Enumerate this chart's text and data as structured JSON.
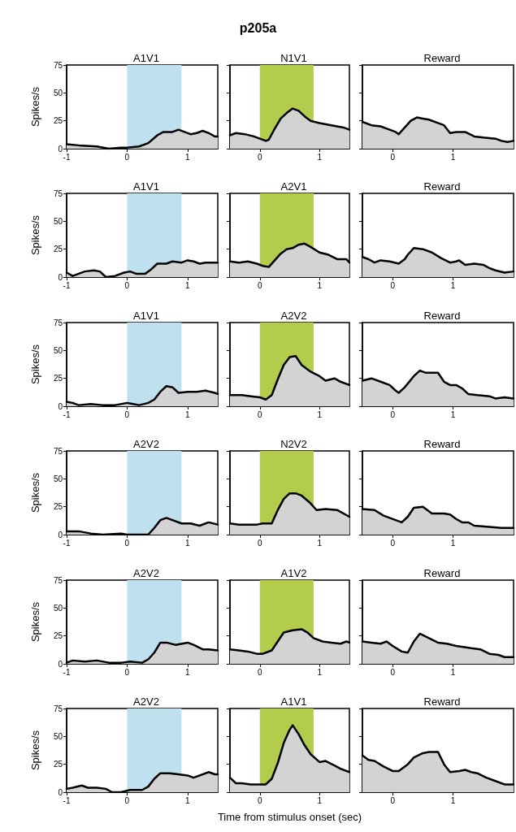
{
  "chart_data": [
    {
      "type": "area",
      "title": "A1V1",
      "ylabel": "Spikes/s",
      "annotations": [
        "p205a"
      ],
      "x": [
        -1,
        -0.8,
        -0.5,
        -0.3,
        -0.1,
        0,
        0.2,
        0.35,
        0.5,
        0.6,
        0.75,
        0.85,
        0.95,
        1.05,
        1.15,
        1.25,
        1.35,
        1.45,
        1.5
      ],
      "values": [
        4,
        3,
        2,
        0,
        1,
        1,
        2,
        5,
        12,
        15,
        15,
        17,
        15,
        13,
        14,
        16,
        14,
        11,
        11
      ],
      "color": "#d3d3d3",
      "xlim": [
        -1,
        1.5
      ],
      "xticks": [
        -1,
        0,
        1
      ],
      "ylim": [
        0,
        75
      ],
      "yticks": [
        0,
        25,
        50,
        75
      ],
      "bands": [
        {
          "axis": "x",
          "from": 0,
          "to": 0.9,
          "color": "#bfe0ee"
        }
      ]
    },
    {
      "type": "area",
      "title": "N1V1",
      "tick_labels": "x",
      "x": [
        -0.5,
        -0.4,
        -0.25,
        -0.1,
        0,
        0.1,
        0.15,
        0.25,
        0.35,
        0.45,
        0.55,
        0.65,
        0.75,
        0.85,
        1,
        1.2,
        1.4,
        1.5
      ],
      "values": [
        12,
        14,
        13,
        11,
        9,
        7,
        8,
        18,
        27,
        32,
        36,
        34,
        29,
        25,
        23,
        21,
        19,
        17
      ],
      "color": "#d3d3d3",
      "xlim": [
        -0.5,
        1.5
      ],
      "xticks": [
        0,
        1
      ],
      "ylim": [
        0,
        75
      ],
      "yticks": [
        0,
        25,
        50,
        75
      ],
      "bands": [
        {
          "axis": "x",
          "from": 0,
          "to": 0.9,
          "color": "#b4cc4c"
        }
      ]
    },
    {
      "type": "area",
      "title": "Reward",
      "tick_labels": "x",
      "x": [
        -0.5,
        -0.35,
        -0.2,
        -0.05,
        0.05,
        0.1,
        0.2,
        0.3,
        0.4,
        0.5,
        0.6,
        0.75,
        0.85,
        0.95,
        1.05,
        1.2,
        1.35,
        1.5,
        1.7,
        1.8,
        1.9,
        2
      ],
      "values": [
        24,
        21,
        20,
        17,
        15,
        13,
        19,
        25,
        28,
        27,
        26,
        23,
        21,
        14,
        15,
        15,
        11,
        10,
        9,
        7,
        6,
        7
      ],
      "color": "#d3d3d3",
      "xlim": [
        -0.5,
        2
      ],
      "xticks": [
        0,
        1
      ],
      "ylim": [
        0,
        75
      ],
      "yticks": [
        0,
        25,
        50,
        75
      ]
    },
    {
      "type": "area",
      "title": "A1V1",
      "ylabel": "Spikes/s",
      "x": [
        -1,
        -0.9,
        -0.8,
        -0.7,
        -0.55,
        -0.45,
        -0.35,
        -0.2,
        -0.05,
        0.05,
        0.15,
        0.3,
        0.4,
        0.5,
        0.65,
        0.75,
        0.9,
        1,
        1.1,
        1.2,
        1.3,
        1.5
      ],
      "values": [
        4,
        1,
        3,
        5,
        6,
        5,
        0,
        1,
        4,
        5,
        3,
        3,
        7,
        12,
        12,
        14,
        13,
        15,
        14,
        12,
        13,
        13
      ],
      "color": "#d3d3d3",
      "xlim": [
        -1,
        1.5
      ],
      "xticks": [
        -1,
        0,
        1
      ],
      "ylim": [
        0,
        75
      ],
      "yticks": [
        0,
        25,
        50,
        75
      ],
      "bands": [
        {
          "axis": "x",
          "from": 0,
          "to": 0.9,
          "color": "#bfe0ee"
        }
      ]
    },
    {
      "type": "area",
      "title": "A2V1",
      "tick_labels": "x",
      "x": [
        -0.5,
        -0.35,
        -0.2,
        -0.05,
        0.05,
        0.15,
        0.25,
        0.35,
        0.45,
        0.55,
        0.65,
        0.75,
        0.85,
        1,
        1.15,
        1.3,
        1.45,
        1.5
      ],
      "values": [
        14,
        13,
        14,
        12,
        10,
        9,
        15,
        21,
        25,
        26,
        29,
        30,
        27,
        22,
        20,
        16,
        16,
        13
      ],
      "color": "#d3d3d3",
      "xlim": [
        -0.5,
        1.5
      ],
      "xticks": [
        0,
        1
      ],
      "ylim": [
        0,
        75
      ],
      "yticks": [
        0,
        25,
        50,
        75
      ],
      "bands": [
        {
          "axis": "x",
          "from": 0,
          "to": 0.9,
          "color": "#b4cc4c"
        }
      ]
    },
    {
      "type": "area",
      "title": "Reward",
      "tick_labels": "x",
      "x": [
        -0.5,
        -0.4,
        -0.3,
        -0.2,
        -0.05,
        0.1,
        0.2,
        0.25,
        0.35,
        0.5,
        0.65,
        0.8,
        0.95,
        1.05,
        1.1,
        1.2,
        1.35,
        1.5,
        1.6,
        1.7,
        1.85,
        2
      ],
      "values": [
        18,
        16,
        13,
        15,
        14,
        12,
        16,
        20,
        26,
        25,
        22,
        17,
        13,
        14,
        15,
        11,
        12,
        11,
        8,
        6,
        4,
        5
      ],
      "color": "#d3d3d3",
      "xlim": [
        -0.5,
        2
      ],
      "xticks": [
        0,
        1
      ],
      "ylim": [
        0,
        75
      ],
      "yticks": [
        0,
        25,
        50,
        75
      ]
    },
    {
      "type": "area",
      "title": "A1V1",
      "ylabel": "Spikes/s",
      "x": [
        -1,
        -0.9,
        -0.8,
        -0.6,
        -0.4,
        -0.2,
        0,
        0.1,
        0.2,
        0.35,
        0.45,
        0.55,
        0.65,
        0.75,
        0.85,
        1,
        1.15,
        1.3,
        1.45,
        1.5
      ],
      "values": [
        4,
        3,
        1,
        2,
        1,
        1,
        3,
        2,
        1,
        3,
        6,
        13,
        18,
        17,
        12,
        13,
        13,
        14,
        12,
        11
      ],
      "color": "#d3d3d3",
      "xlim": [
        -1,
        1.5
      ],
      "xticks": [
        -1,
        0,
        1
      ],
      "ylim": [
        0,
        75
      ],
      "yticks": [
        0,
        25,
        50,
        75
      ],
      "bands": [
        {
          "axis": "x",
          "from": 0,
          "to": 0.9,
          "color": "#bfe0ee"
        }
      ]
    },
    {
      "type": "area",
      "title": "A2V2",
      "tick_labels": "x",
      "x": [
        -0.5,
        -0.3,
        -0.15,
        0,
        0.1,
        0.2,
        0.3,
        0.4,
        0.5,
        0.6,
        0.7,
        0.85,
        1,
        1.1,
        1.25,
        1.35,
        1.5
      ],
      "values": [
        10,
        10,
        9,
        8,
        6,
        10,
        24,
        37,
        44,
        45,
        37,
        31,
        27,
        23,
        25,
        22,
        19
      ],
      "color": "#d3d3d3",
      "xlim": [
        -0.5,
        1.5
      ],
      "xticks": [
        0,
        1
      ],
      "ylim": [
        0,
        75
      ],
      "yticks": [
        0,
        25,
        50,
        75
      ],
      "bands": [
        {
          "axis": "x",
          "from": 0,
          "to": 0.9,
          "color": "#b4cc4c"
        }
      ]
    },
    {
      "type": "area",
      "title": "Reward",
      "tick_labels": "x",
      "x": [
        -0.5,
        -0.35,
        -0.2,
        -0.05,
        0.05,
        0.1,
        0.2,
        0.35,
        0.45,
        0.55,
        0.75,
        0.85,
        0.95,
        1.05,
        1.15,
        1.25,
        1.4,
        1.6,
        1.7,
        1.85,
        2
      ],
      "values": [
        23,
        25,
        22,
        19,
        14,
        12,
        17,
        27,
        32,
        30,
        30,
        22,
        19,
        19,
        16,
        11,
        10,
        9,
        7,
        8,
        7
      ],
      "color": "#d3d3d3",
      "xlim": [
        -0.5,
        2
      ],
      "xticks": [
        0,
        1
      ],
      "ylim": [
        0,
        75
      ],
      "yticks": [
        0,
        25,
        50,
        75
      ]
    },
    {
      "type": "area",
      "title": "A2V2",
      "ylabel": "Spikes/s",
      "x": [
        -1,
        -0.8,
        -0.6,
        -0.4,
        -0.1,
        0,
        0.2,
        0.35,
        0.45,
        0.55,
        0.65,
        0.75,
        0.9,
        1.05,
        1.2,
        1.35,
        1.5
      ],
      "values": [
        3,
        3,
        1,
        0,
        1,
        0,
        0,
        0,
        6,
        13,
        15,
        13,
        10,
        10,
        8,
        11,
        9
      ],
      "color": "#d3d3d3",
      "xlim": [
        -1,
        1.5
      ],
      "xticks": [
        -1,
        0,
        1
      ],
      "ylim": [
        0,
        75
      ],
      "yticks": [
        0,
        25,
        50,
        75
      ],
      "bands": [
        {
          "axis": "x",
          "from": 0,
          "to": 0.9,
          "color": "#bfe0ee"
        }
      ]
    },
    {
      "type": "area",
      "title": "N2V2",
      "tick_labels": "x",
      "x": [
        -0.5,
        -0.35,
        -0.2,
        -0.05,
        0.05,
        0.15,
        0.2,
        0.3,
        0.4,
        0.5,
        0.6,
        0.7,
        0.85,
        0.95,
        1.1,
        1.3,
        1.5
      ],
      "values": [
        10,
        9,
        9,
        9,
        10,
        10,
        10,
        22,
        32,
        37,
        37,
        35,
        28,
        22,
        23,
        22,
        16
      ],
      "color": "#d3d3d3",
      "xlim": [
        -0.5,
        1.5
      ],
      "xticks": [
        0,
        1
      ],
      "ylim": [
        0,
        75
      ],
      "yticks": [
        0,
        25,
        50,
        75
      ],
      "bands": [
        {
          "axis": "x",
          "from": 0,
          "to": 0.9,
          "color": "#b4cc4c"
        }
      ]
    },
    {
      "type": "area",
      "title": "Reward",
      "tick_labels": "x",
      "x": [
        -0.5,
        -0.3,
        -0.15,
        0.05,
        0.15,
        0.25,
        0.35,
        0.5,
        0.65,
        0.85,
        0.95,
        1.05,
        1.15,
        1.25,
        1.35,
        1.6,
        1.8,
        2
      ],
      "values": [
        23,
        22,
        17,
        13,
        11,
        16,
        24,
        25,
        19,
        19,
        18,
        14,
        11,
        11,
        8,
        7,
        6,
        6
      ],
      "color": "#d3d3d3",
      "xlim": [
        -0.5,
        2
      ],
      "xticks": [
        0,
        1
      ],
      "ylim": [
        0,
        75
      ],
      "yticks": [
        0,
        25,
        50,
        75
      ]
    },
    {
      "type": "area",
      "title": "A2V2",
      "ylabel": "Spikes/s",
      "x": [
        -1,
        -0.9,
        -0.7,
        -0.5,
        -0.3,
        -0.1,
        0.05,
        0.25,
        0.35,
        0.45,
        0.55,
        0.65,
        0.8,
        1,
        1.1,
        1.25,
        1.35,
        1.5
      ],
      "values": [
        1,
        3,
        2,
        3,
        1,
        1,
        2,
        1,
        4,
        10,
        19,
        19,
        17,
        19,
        17,
        13,
        13,
        12
      ],
      "color": "#d3d3d3",
      "xlim": [
        -1,
        1.5
      ],
      "xticks": [
        -1,
        0,
        1
      ],
      "ylim": [
        0,
        75
      ],
      "yticks": [
        0,
        25,
        50,
        75
      ],
      "bands": [
        {
          "axis": "x",
          "from": 0,
          "to": 0.9,
          "color": "#bfe0ee"
        }
      ]
    },
    {
      "type": "area",
      "title": "A1V2",
      "tick_labels": "x",
      "x": [
        -0.5,
        -0.35,
        -0.2,
        -0.05,
        0.05,
        0.1,
        0.2,
        0.3,
        0.4,
        0.55,
        0.7,
        0.8,
        0.9,
        1.05,
        1.2,
        1.35,
        1.45,
        1.5
      ],
      "values": [
        13,
        12,
        11,
        9,
        9,
        10,
        12,
        20,
        28,
        30,
        31,
        28,
        23,
        20,
        19,
        18,
        20,
        19
      ],
      "color": "#d3d3d3",
      "xlim": [
        -0.5,
        1.5
      ],
      "xticks": [
        0,
        1
      ],
      "ylim": [
        0,
        75
      ],
      "yticks": [
        0,
        25,
        50,
        75
      ],
      "bands": [
        {
          "axis": "x",
          "from": 0,
          "to": 0.9,
          "color": "#b4cc4c"
        }
      ]
    },
    {
      "type": "area",
      "title": "Reward",
      "tick_labels": "x",
      "x": [
        -0.5,
        -0.35,
        -0.2,
        -0.1,
        0,
        0.15,
        0.25,
        0.35,
        0.45,
        0.6,
        0.75,
        0.9,
        1.05,
        1.3,
        1.45,
        1.6,
        1.75,
        1.85,
        2
      ],
      "values": [
        20,
        19,
        18,
        20,
        16,
        11,
        10,
        20,
        27,
        23,
        19,
        18,
        16,
        14,
        13,
        9,
        8,
        6,
        6
      ],
      "color": "#d3d3d3",
      "xlim": [
        -0.5,
        2
      ],
      "xticks": [
        0,
        1
      ],
      "ylim": [
        0,
        75
      ],
      "yticks": [
        0,
        25,
        50,
        75
      ]
    },
    {
      "type": "area",
      "title": "A2V2",
      "ylabel": "Spikes/s",
      "x": [
        -1,
        -0.9,
        -0.75,
        -0.65,
        -0.5,
        -0.35,
        -0.25,
        -0.1,
        0.05,
        0.15,
        0.25,
        0.35,
        0.45,
        0.55,
        0.7,
        0.85,
        1,
        1.1,
        1.2,
        1.35,
        1.45,
        1.5
      ],
      "values": [
        3,
        4,
        6,
        4,
        4,
        3,
        0,
        0,
        2,
        2,
        2,
        5,
        12,
        17,
        17,
        16,
        15,
        13,
        15,
        18,
        16,
        16
      ],
      "color": "#d3d3d3",
      "xlim": [
        -1,
        1.5
      ],
      "xticks": [
        -1,
        0,
        1
      ],
      "ylim": [
        0,
        75
      ],
      "yticks": [
        0,
        25,
        50,
        75
      ],
      "bands": [
        {
          "axis": "x",
          "from": 0,
          "to": 0.9,
          "color": "#bfe0ee"
        }
      ]
    },
    {
      "type": "area",
      "title": "A1V1",
      "xlabel": "Time from stimulus onset (sec)",
      "tick_labels": "x",
      "x": [
        -0.5,
        -0.4,
        -0.3,
        -0.15,
        0,
        0.1,
        0.2,
        0.3,
        0.4,
        0.5,
        0.55,
        0.65,
        0.75,
        0.85,
        1,
        1.1,
        1.25,
        1.35,
        1.5
      ],
      "values": [
        13,
        8,
        8,
        7,
        7,
        7,
        12,
        26,
        44,
        56,
        60,
        52,
        42,
        34,
        27,
        28,
        24,
        21,
        18
      ],
      "color": "#d3d3d3",
      "xlim": [
        -0.5,
        1.5
      ],
      "xticks": [
        0,
        1
      ],
      "ylim": [
        0,
        75
      ],
      "yticks": [
        0,
        25,
        50,
        75
      ],
      "bands": [
        {
          "axis": "x",
          "from": 0,
          "to": 0.9,
          "color": "#b4cc4c"
        }
      ]
    },
    {
      "type": "area",
      "title": "Reward",
      "tick_labels": "x",
      "x": [
        -0.5,
        -0.4,
        -0.3,
        -0.15,
        0,
        0.1,
        0.25,
        0.35,
        0.5,
        0.6,
        0.75,
        0.85,
        0.95,
        1.1,
        1.2,
        1.3,
        1.4,
        1.55,
        1.7,
        1.85,
        2
      ],
      "values": [
        33,
        29,
        28,
        23,
        19,
        19,
        25,
        31,
        35,
        36,
        36,
        25,
        18,
        19,
        20,
        18,
        17,
        13,
        10,
        7,
        7
      ],
      "color": "#d3d3d3",
      "xlim": [
        -0.5,
        2
      ],
      "xticks": [
        0,
        1
      ],
      "ylim": [
        0,
        75
      ],
      "yticks": [
        0,
        25,
        50,
        75
      ]
    }
  ]
}
